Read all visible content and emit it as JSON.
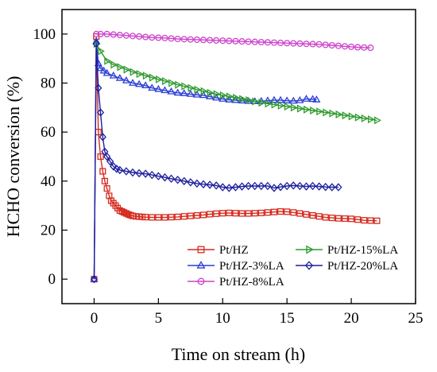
{
  "chart_data": {
    "type": "line",
    "title": "",
    "xlabel": "Time on stream (h)",
    "ylabel": "HCHO conversion (%)",
    "xlim": [
      -2.5,
      25
    ],
    "ylim": [
      -10,
      110
    ],
    "xticks": [
      0,
      5,
      10,
      15,
      20,
      25
    ],
    "yticks": [
      0,
      20,
      40,
      60,
      80,
      100
    ],
    "xtick_labels": [
      "0",
      "5",
      "10",
      "15",
      "20",
      "25"
    ],
    "ytick_labels": [
      "0",
      "20",
      "40",
      "60",
      "80",
      "100"
    ],
    "grid": false,
    "legend_position": "bottom-center",
    "series": [
      {
        "name": "Pt/HZ",
        "color": "#d62a1e",
        "marker": "square",
        "x": [
          0,
          0.17,
          0.33,
          0.5,
          0.67,
          0.83,
          1.0,
          1.17,
          1.33,
          1.5,
          1.67,
          1.83,
          2.0,
          2.17,
          2.33,
          2.5,
          2.67,
          2.83,
          3.0,
          3.25,
          3.5,
          3.75,
          4.0,
          4.5,
          5.0,
          5.5,
          6.0,
          6.5,
          7.0,
          7.5,
          8.0,
          8.5,
          9.0,
          9.5,
          10.0,
          10.5,
          11.0,
          11.5,
          12.0,
          12.5,
          13.0,
          13.5,
          14.0,
          14.5,
          15.0,
          15.5,
          16.0,
          16.5,
          17.0,
          17.5,
          18.0,
          18.5,
          19.0,
          19.5,
          20.0,
          20.5,
          21.0,
          21.5,
          22.0
        ],
        "y": [
          0,
          99,
          60,
          50,
          44,
          40,
          37,
          34,
          32,
          31,
          30,
          29,
          28,
          27.6,
          27.2,
          26.8,
          26.4,
          26.1,
          25.8,
          25.6,
          25.5,
          25.4,
          25.3,
          25.2,
          25.2,
          25.2,
          25.3,
          25.4,
          25.6,
          25.8,
          26.0,
          26.2,
          26.5,
          26.7,
          26.9,
          27.0,
          26.9,
          26.8,
          26.8,
          26.9,
          27.0,
          27.2,
          27.4,
          27.6,
          27.5,
          27.2,
          26.8,
          26.4,
          26.0,
          25.6,
          25.2,
          25.0,
          24.8,
          24.7,
          24.6,
          24.3,
          24.0,
          23.9,
          23.8
        ]
      },
      {
        "name": "Pt/HZ-3%LA",
        "color": "#2b3fd6",
        "marker": "triangle-up",
        "x": [
          0,
          0.17,
          0.33,
          0.5,
          0.75,
          1.0,
          1.5,
          2.0,
          2.5,
          3.0,
          3.5,
          4.0,
          4.5,
          5.0,
          5.5,
          6.0,
          6.5,
          7.0,
          7.5,
          8.0,
          8.5,
          9.0,
          9.5,
          10.0,
          10.5,
          11.0,
          11.5,
          12.0,
          12.5,
          13.0,
          13.5,
          14.0,
          14.5,
          15.0,
          15.5,
          16.0,
          16.5,
          17.0,
          17.3
        ],
        "y": [
          0,
          97,
          88,
          86,
          85,
          84,
          83,
          82,
          81,
          80,
          79.5,
          79,
          78,
          77.5,
          77,
          76.5,
          76,
          75.8,
          75.5,
          75.2,
          75,
          74.5,
          74,
          73.5,
          73.2,
          73,
          72.8,
          72.6,
          72.5,
          72.6,
          72.8,
          73,
          73,
          72.8,
          72.7,
          72.9,
          73.5,
          73.4,
          73.2
        ]
      },
      {
        "name": "Pt/HZ-8%LA",
        "color": "#cc44cc",
        "marker": "circle",
        "x": [
          0.17,
          0.5,
          1.0,
          1.5,
          2.0,
          2.5,
          3.0,
          3.5,
          4.0,
          4.5,
          5.0,
          5.5,
          6.0,
          6.5,
          7.0,
          7.5,
          8.0,
          8.5,
          9.0,
          9.5,
          10.0,
          10.5,
          11.0,
          11.5,
          12.0,
          12.5,
          13.0,
          13.5,
          14.0,
          14.5,
          15.0,
          15.5,
          16.0,
          16.5,
          17.0,
          17.5,
          18.0,
          18.5,
          19.0,
          19.5,
          20.0,
          20.5,
          21.0,
          21.5
        ],
        "y": [
          100,
          100,
          100,
          99.8,
          99.6,
          99.4,
          99.2,
          99.0,
          98.8,
          98.6,
          98.5,
          98.4,
          98.2,
          98.0,
          97.9,
          97.8,
          97.7,
          97.6,
          97.5,
          97.4,
          97.3,
          97.2,
          97.1,
          97.0,
          96.9,
          96.8,
          96.7,
          96.6,
          96.5,
          96.4,
          96.3,
          96.2,
          96.1,
          96.0,
          95.9,
          95.8,
          95.6,
          95.4,
          95.2,
          95.0,
          94.8,
          94.6,
          94.5,
          94.4
        ]
      },
      {
        "name": "Pt/HZ-15%LA",
        "color": "#2f9b2f",
        "marker": "triangle-right",
        "x": [
          0.17,
          0.5,
          1.0,
          1.5,
          2.0,
          2.5,
          3.0,
          3.5,
          4.0,
          4.5,
          5.0,
          5.5,
          6.0,
          6.5,
          7.0,
          7.5,
          8.0,
          8.5,
          9.0,
          9.5,
          10.0,
          10.5,
          11.0,
          11.5,
          12.0,
          12.5,
          13.0,
          13.5,
          14.0,
          14.5,
          15.0,
          15.5,
          16.0,
          16.5,
          17.0,
          17.5,
          18.0,
          18.5,
          19.0,
          19.5,
          20.0,
          20.5,
          21.0,
          21.5,
          22.0
        ],
        "y": [
          96,
          93,
          89,
          87.5,
          86.5,
          85.5,
          84.5,
          83.7,
          83,
          82.2,
          81.5,
          80.8,
          80,
          79.3,
          78.7,
          78,
          77.3,
          76.7,
          76,
          75.5,
          75,
          74.5,
          74,
          73.5,
          73,
          72.5,
          72,
          71.6,
          71.2,
          70.8,
          70.4,
          70,
          69.6,
          69.2,
          68.8,
          68.4,
          68,
          67.6,
          67.2,
          66.8,
          66.4,
          66,
          65.6,
          65.2,
          64.8
        ]
      },
      {
        "name": "Pt/HZ-20%LA",
        "color": "#1f1f9e",
        "marker": "diamond",
        "x": [
          0,
          0.17,
          0.33,
          0.5,
          0.67,
          0.83,
          1.0,
          1.25,
          1.5,
          1.75,
          2.0,
          2.5,
          3.0,
          3.5,
          4.0,
          4.5,
          5.0,
          5.5,
          6.0,
          6.5,
          7.0,
          7.5,
          8.0,
          8.5,
          9.0,
          9.5,
          10.0,
          10.5,
          11.0,
          11.5,
          12.0,
          12.5,
          13.0,
          13.5,
          14.0,
          14.5,
          15.0,
          15.5,
          16.0,
          16.5,
          17.0,
          17.5,
          18.0,
          18.5,
          19.0
        ],
        "y": [
          0,
          96,
          78,
          68,
          58,
          52,
          50,
          48,
          46,
          45,
          44.5,
          44,
          43.5,
          43.2,
          43,
          42.5,
          42,
          41.5,
          41,
          40.5,
          40,
          39.5,
          39,
          38.7,
          38.5,
          38.2,
          37.5,
          37.2,
          37.5,
          37.8,
          38,
          38,
          38,
          38,
          37.2,
          37.6,
          38,
          38.2,
          38,
          37.8,
          38,
          37.8,
          37.6,
          37.5,
          37.5
        ]
      }
    ]
  }
}
